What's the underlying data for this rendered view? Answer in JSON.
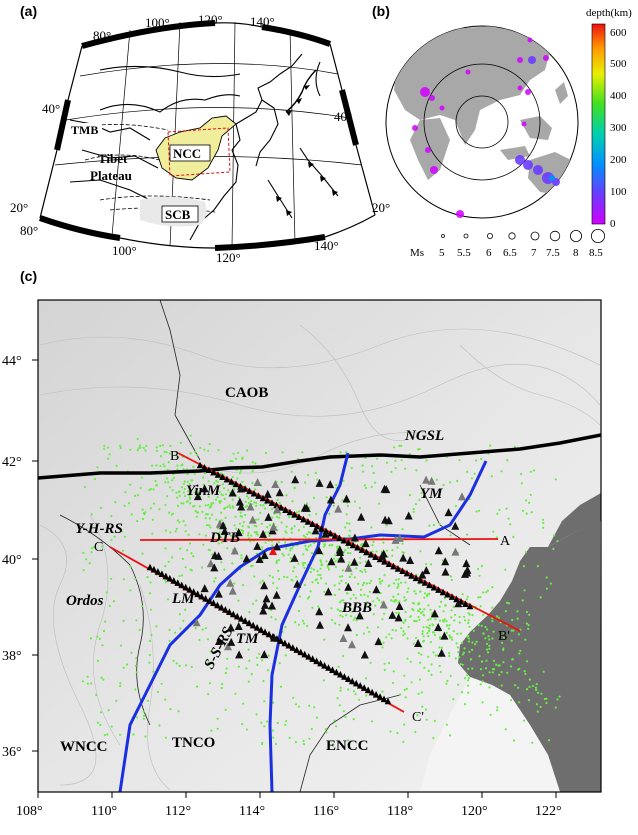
{
  "panel_a": {
    "label": "(a)",
    "lon_top": [
      "80°",
      "100°",
      "120°",
      "140°"
    ],
    "lon_bottom": [
      "80°",
      "100°",
      "120°",
      "140°"
    ],
    "lat_left": [
      "40°",
      "20°"
    ],
    "lat_right": [
      "40°",
      "20°"
    ],
    "regions": {
      "tmb": "TMB",
      "tibet1": "Tibet",
      "tibet2": "Plateau",
      "ncc": "NCC",
      "scb": "SCB"
    }
  },
  "panel_b": {
    "label": "(b)",
    "colorbar_title": "depth(km)",
    "colorbar_ticks": [
      "600",
      "500",
      "400",
      "300",
      "200",
      "100",
      "0"
    ],
    "ms_label": "Ms",
    "ms_values": [
      "5",
      "5.5",
      "6",
      "6.5",
      "7",
      "7.5",
      "8",
      "8.5"
    ]
  },
  "panel_c": {
    "label": "(c)",
    "x_ticks": [
      "108°",
      "110°",
      "112°",
      "114°",
      "116°",
      "118°",
      "120°",
      "122°"
    ],
    "y_ticks": [
      "44°",
      "42°",
      "40°",
      "38°",
      "36°"
    ],
    "labels": {
      "caob": "CAOB",
      "ngsl": "NGSL",
      "yinm": "YinM",
      "ym": "YM",
      "yhrs": "Y-H-RS",
      "dtb": "DTB",
      "ordos": "Ordos",
      "lm": "LM",
      "bbb": "BBB",
      "tm": "TM",
      "ssrs": "S-S-RS",
      "wncc": "WNCC",
      "tnco": "TNCO",
      "encc": "ENCC",
      "b": "B",
      "b2": "B'",
      "c": "C",
      "c2": "C'",
      "a": "A"
    }
  },
  "colors": {
    "ncc_fill": "#f0ee9a",
    "station_green": "#66ee44",
    "sea": "#6e6e6e",
    "profile": "#ee1111",
    "boundary_blue": "#1a2fe0"
  }
}
